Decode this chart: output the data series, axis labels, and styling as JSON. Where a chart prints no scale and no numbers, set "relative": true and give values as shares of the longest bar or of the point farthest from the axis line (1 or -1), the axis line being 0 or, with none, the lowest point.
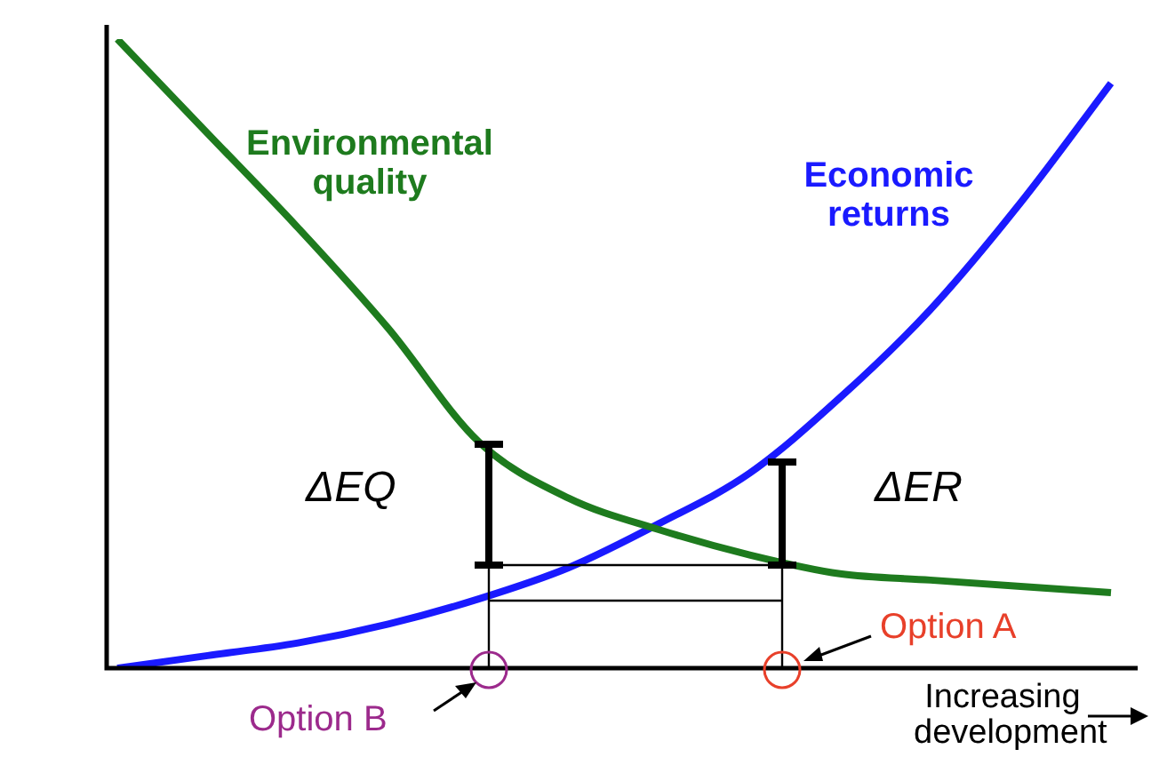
{
  "chart_data": {
    "type": "line",
    "relative": true,
    "legend": false,
    "marker": "none",
    "xlabel": "Increasing development",
    "categories": [
      null,
      null,
      null,
      null,
      null,
      null,
      null,
      null,
      null,
      null,
      null,
      null
    ],
    "series": [
      {
        "name": "Environmental quality",
        "color": "#1e7b1e",
        "values": [
          1,
          0.85,
          0.7,
          0.54,
          0.36,
          0.27,
          0.22,
          0.18,
          0.15,
          0.14,
          0.13,
          0.12
        ]
      },
      {
        "name": "Economic returns",
        "color": "#1a1aff",
        "values": [
          0,
          0.02,
          0.04,
          0.07,
          0.11,
          0.16,
          0.23,
          0.31,
          0.43,
          0.57,
          0.74,
          0.93
        ]
      }
    ],
    "annotations": [
      "ΔEQ",
      "ΔER",
      "Option A",
      "Option B"
    ]
  }
}
